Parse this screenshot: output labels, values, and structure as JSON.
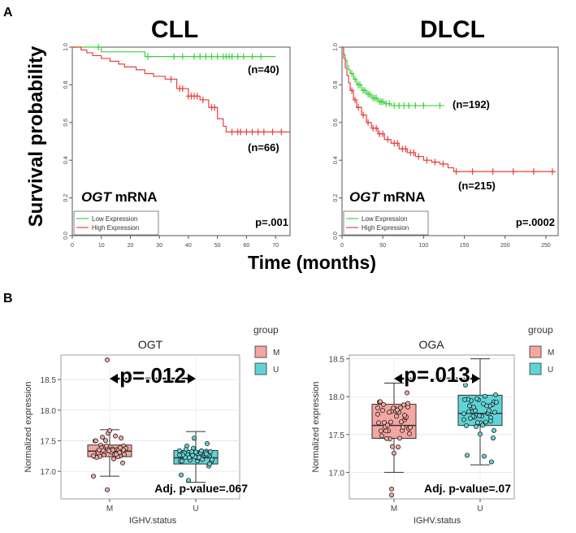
{
  "panel_a": {
    "label": "A",
    "ylabel": "Survival probability",
    "xlabel": "Time (months)"
  },
  "panel_b": {
    "label": "B"
  },
  "chart_data": [
    {
      "id": "km_cll",
      "type": "line",
      "title": "CLL",
      "xlabel": "Time (months)",
      "ylabel": "Survival probability",
      "xlim": [
        0,
        75
      ],
      "ylim": [
        0,
        1
      ],
      "xticks": [
        0,
        10,
        20,
        30,
        40,
        50,
        60,
        70
      ],
      "yticks": [
        0.0,
        0.2,
        0.4,
        0.6,
        0.8,
        1.0
      ],
      "ytick_labels": [
        "0.0",
        "0.2",
        "0.4",
        "0.6",
        "0.8",
        "1.0"
      ],
      "gene": "OGT",
      "gene_suffix": " mRNA",
      "pvalue": "p=.001",
      "legend": {
        "position": "bottom-left",
        "entries": [
          "Low Expression",
          "High Expression"
        ]
      },
      "series": [
        {
          "name": "Low Expression",
          "color": "#3fd13f",
          "n_label": "(n=40)",
          "label_at": [
            63,
            0.91
          ],
          "x": [
            0,
            8,
            10,
            22,
            25,
            70
          ],
          "y": [
            1.0,
            1.0,
            0.975,
            0.975,
            0.95,
            0.95
          ],
          "censors": [
            [
              9,
              1.0
            ],
            [
              26,
              0.95
            ],
            [
              35,
              0.95
            ],
            [
              38,
              0.95
            ],
            [
              42,
              0.95
            ],
            [
              44,
              0.95
            ],
            [
              46,
              0.95
            ],
            [
              48,
              0.95
            ],
            [
              50,
              0.95
            ],
            [
              52,
              0.95
            ],
            [
              53,
              0.95
            ],
            [
              54,
              0.95
            ],
            [
              55,
              0.95
            ],
            [
              57,
              0.95
            ],
            [
              59,
              0.95
            ],
            [
              62,
              0.95
            ],
            [
              65,
              0.95
            ]
          ]
        },
        {
          "name": "High Expression",
          "color": "#e8423f",
          "n_label": "(n=66)",
          "label_at": [
            63,
            0.41
          ],
          "x": [
            0,
            3,
            5,
            7,
            10,
            13,
            16,
            18,
            22,
            25,
            28,
            32,
            36,
            40,
            44,
            47,
            50,
            52,
            53,
            75
          ],
          "y": [
            1.0,
            0.985,
            0.97,
            0.955,
            0.94,
            0.925,
            0.91,
            0.895,
            0.88,
            0.86,
            0.845,
            0.83,
            0.78,
            0.74,
            0.72,
            0.68,
            0.62,
            0.58,
            0.55,
            0.55
          ],
          "censors": [
            [
              34,
              0.83
            ],
            [
              37,
              0.78
            ],
            [
              38,
              0.78
            ],
            [
              40,
              0.74
            ],
            [
              41,
              0.74
            ],
            [
              42,
              0.74
            ],
            [
              43,
              0.74
            ],
            [
              45,
              0.72
            ],
            [
              48,
              0.68
            ],
            [
              49,
              0.68
            ],
            [
              55,
              0.55
            ],
            [
              57,
              0.55
            ],
            [
              58,
              0.55
            ],
            [
              60,
              0.55
            ],
            [
              62,
              0.55
            ],
            [
              64,
              0.55
            ],
            [
              66,
              0.55
            ],
            [
              69,
              0.55
            ],
            [
              72,
              0.55
            ]
          ]
        }
      ]
    },
    {
      "id": "km_dlcl",
      "type": "line",
      "title": "DLCL",
      "xlabel": "Time (months)",
      "ylabel": "Survival probability",
      "xlim": [
        0,
        265
      ],
      "ylim": [
        0,
        1
      ],
      "xticks": [
        0,
        50,
        100,
        150,
        200,
        250
      ],
      "yticks": [
        0.0,
        0.2,
        0.4,
        0.6,
        0.8,
        1.0
      ],
      "ytick_labels": [
        "0.0",
        "0.2",
        "0.4",
        "0.6",
        "0.8",
        "1.0"
      ],
      "gene": "OGT",
      "gene_suffix": " mRNA",
      "pvalue": "p=.0002",
      "legend": {
        "position": "bottom-left",
        "entries": [
          "Low Expression",
          "High Expression"
        ]
      },
      "series": [
        {
          "name": "Low Expression",
          "color": "#3fd13f",
          "n_label": "(n=192)",
          "label_at": [
            140,
            0.68
          ],
          "x": [
            0,
            2,
            4,
            6,
            8,
            10,
            14,
            18,
            24,
            30,
            36,
            44,
            52,
            60,
            125
          ],
          "y": [
            1.0,
            0.96,
            0.93,
            0.9,
            0.88,
            0.86,
            0.83,
            0.8,
            0.77,
            0.75,
            0.73,
            0.71,
            0.7,
            0.69,
            0.69
          ],
          "censors": [
            [
              12,
              0.86
            ],
            [
              16,
              0.83
            ],
            [
              20,
              0.8
            ],
            [
              22,
              0.8
            ],
            [
              26,
              0.77
            ],
            [
              28,
              0.77
            ],
            [
              32,
              0.75
            ],
            [
              34,
              0.75
            ],
            [
              38,
              0.73
            ],
            [
              40,
              0.73
            ],
            [
              42,
              0.73
            ],
            [
              46,
              0.71
            ],
            [
              48,
              0.71
            ],
            [
              50,
              0.71
            ],
            [
              54,
              0.7
            ],
            [
              58,
              0.7
            ],
            [
              64,
              0.69
            ],
            [
              70,
              0.69
            ],
            [
              76,
              0.69
            ],
            [
              82,
              0.69
            ],
            [
              90,
              0.69
            ],
            [
              100,
              0.69
            ],
            [
              120,
              0.69
            ]
          ]
        },
        {
          "name": "High Expression",
          "color": "#e8423f",
          "n_label": "(n=215)",
          "label_at": [
            145,
            0.245
          ],
          "x": [
            0,
            2,
            4,
            6,
            8,
            10,
            14,
            18,
            24,
            30,
            36,
            44,
            52,
            60,
            70,
            80,
            90,
            100,
            110,
            120,
            130,
            137,
            262
          ],
          "y": [
            1.0,
            0.94,
            0.89,
            0.85,
            0.81,
            0.77,
            0.72,
            0.68,
            0.64,
            0.6,
            0.57,
            0.54,
            0.51,
            0.49,
            0.46,
            0.44,
            0.42,
            0.4,
            0.39,
            0.38,
            0.36,
            0.34,
            0.34
          ],
          "censors": [
            [
              12,
              0.77
            ],
            [
              16,
              0.72
            ],
            [
              20,
              0.68
            ],
            [
              26,
              0.64
            ],
            [
              32,
              0.6
            ],
            [
              38,
              0.57
            ],
            [
              42,
              0.57
            ],
            [
              46,
              0.54
            ],
            [
              50,
              0.54
            ],
            [
              56,
              0.51
            ],
            [
              64,
              0.49
            ],
            [
              68,
              0.49
            ],
            [
              74,
              0.46
            ],
            [
              78,
              0.46
            ],
            [
              84,
              0.44
            ],
            [
              88,
              0.44
            ],
            [
              94,
              0.42
            ],
            [
              104,
              0.4
            ],
            [
              114,
              0.39
            ],
            [
              124,
              0.38
            ],
            [
              140,
              0.34
            ],
            [
              160,
              0.34
            ],
            [
              185,
              0.34
            ],
            [
              210,
              0.34
            ],
            [
              235,
              0.34
            ],
            [
              258,
              0.34
            ]
          ]
        }
      ]
    },
    {
      "id": "box_ogt",
      "type": "box",
      "title": "OGT",
      "xlabel": "IGHV.status",
      "ylabel": "Normalized expression",
      "categories": [
        "M",
        "U"
      ],
      "ylim": [
        16.55,
        18.9
      ],
      "yticks": [
        17.0,
        17.5,
        18.0,
        18.5
      ],
      "ytick_labels": [
        "17.0",
        "17.5",
        "18.0",
        "18.5"
      ],
      "legend_title": "group",
      "legend": [
        "M",
        "U"
      ],
      "colors": [
        "#f4a6a0",
        "#5fd4d6"
      ],
      "bracket_label": "p=.012",
      "adj_label": "Adj. p-value=.067",
      "boxes": [
        {
          "group": "M",
          "min": 16.92,
          "q1": 17.24,
          "median": 17.33,
          "q3": 17.43,
          "max": 17.68,
          "outliers": [
            18.82,
            16.7
          ]
        },
        {
          "group": "U",
          "min": 16.82,
          "q1": 17.12,
          "median": 17.22,
          "q3": 17.34,
          "max": 17.65,
          "outliers": []
        }
      ]
    },
    {
      "id": "box_oga",
      "type": "box",
      "title": "OGA",
      "xlabel": "IGHV.status",
      "ylabel": "Normalized expression",
      "categories": [
        "M",
        "U"
      ],
      "ylim": [
        16.65,
        18.55
      ],
      "yticks": [
        17.0,
        17.5,
        18.0,
        18.5
      ],
      "ytick_labels": [
        "17.0",
        "17.5",
        "18.0",
        "18.5"
      ],
      "legend_title": "group",
      "legend": [
        "M",
        "U"
      ],
      "colors": [
        "#f4a6a0",
        "#5fd4d6"
      ],
      "bracket_label": "p=.013",
      "adj_label": "Adj. p-value=.07",
      "boxes": [
        {
          "group": "M",
          "min": 17.0,
          "q1": 17.45,
          "median": 17.62,
          "q3": 17.9,
          "max": 18.18,
          "outliers": [
            16.78,
            16.7
          ]
        },
        {
          "group": "U",
          "min": 17.1,
          "q1": 17.62,
          "median": 17.78,
          "q3": 18.02,
          "max": 18.5,
          "outliers": []
        }
      ]
    }
  ]
}
